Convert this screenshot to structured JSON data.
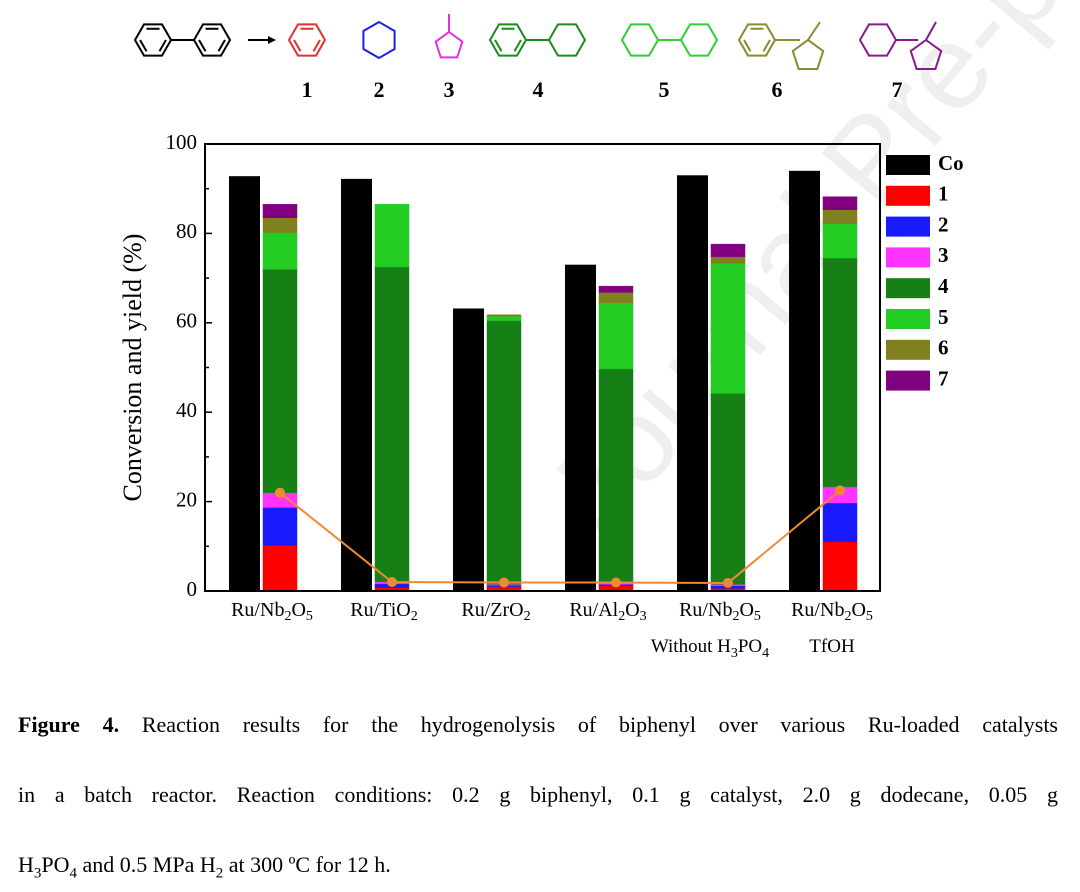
{
  "compound_labels": [
    "1",
    "2",
    "3",
    "4",
    "5",
    "6",
    "7"
  ],
  "chart_data": {
    "type": "stacked_bar_pair",
    "ylabel": "Conversion and yield (%)",
    "categories": [
      "Ru/Nb2O5",
      "Ru/TiO2",
      "Ru/ZrO2",
      "Ru/Al2O3",
      "Ru/Nb2O5",
      "Ru/Nb2O5"
    ],
    "category_sublabels": [
      null,
      null,
      null,
      null,
      "Without H3PO4",
      "TfOH"
    ],
    "ylim": [
      0,
      100
    ],
    "yticks": [
      0,
      20,
      40,
      60,
      80,
      100
    ],
    "conversion": {
      "name": "Co",
      "color": "#000000",
      "values": [
        92.8,
        92.2,
        63.2,
        73.0,
        93.0,
        94.0
      ]
    },
    "series": [
      {
        "name": "1",
        "color": "#ff0000",
        "values": [
          10.2,
          0.8,
          1.0,
          1.2,
          0.6,
          11.0
        ]
      },
      {
        "name": "2",
        "color": "#1a1aff",
        "values": [
          8.5,
          0.8,
          0.3,
          0.3,
          0.6,
          8.7
        ]
      },
      {
        "name": "3",
        "color": "#ff33ff",
        "values": [
          3.3,
          0.5,
          0.2,
          0.3,
          0.3,
          3.6
        ]
      },
      {
        "name": "4",
        "color": "#168016",
        "values": [
          50.0,
          70.4,
          59.0,
          47.9,
          42.7,
          51.2
        ]
      },
      {
        "name": "5",
        "color": "#22cc22",
        "values": [
          8.2,
          14.0,
          1.0,
          14.8,
          29.1,
          7.7
        ]
      },
      {
        "name": "6",
        "color": "#808020",
        "values": [
          3.3,
          0,
          0.3,
          2.3,
          1.5,
          3.1
        ]
      },
      {
        "name": "7",
        "color": "#800080",
        "values": [
          3.0,
          0,
          0,
          1.4,
          2.8,
          2.9
        ]
      }
    ],
    "line": {
      "color": "#f08a30",
      "values": [
        22.0,
        2.0,
        1.9,
        1.9,
        1.8,
        22.5
      ]
    }
  },
  "caption": {
    "label": "Figure 4.",
    "lines": [
      " Reaction results for the hydrogenolysis of biphenyl over various Ru-loaded catalysts",
      "in a batch reactor. Reaction conditions: 0.2 g biphenyl, 0.1 g catalyst, 2.0 g dodecane, 0.05 g",
      "H3PO4 and 0.5 MPa H2 at 300 ºC for 12 h."
    ]
  },
  "watermark": "Journal Pre-proofs"
}
